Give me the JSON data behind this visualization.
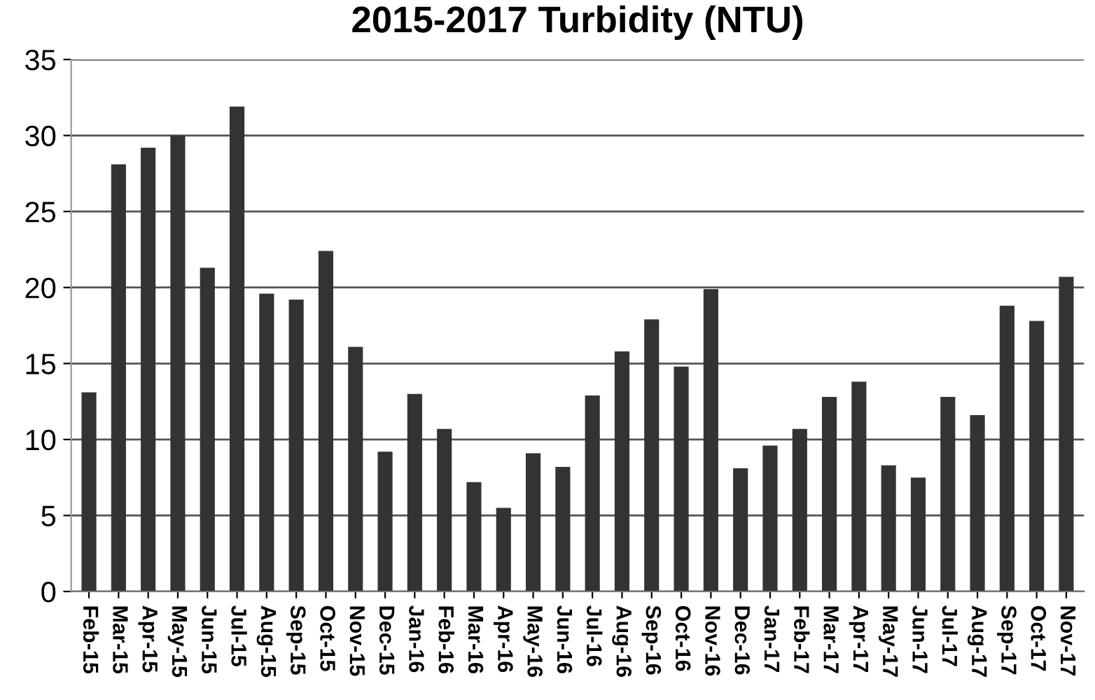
{
  "chart_data": {
    "type": "bar",
    "title": "2015-2017 Turbidity (NTU)",
    "categories": [
      "Feb-15",
      "Mar-15",
      "Apr-15",
      "May-15",
      "Jun-15",
      "Jul-15",
      "Aug-15",
      "Sep-15",
      "Oct-15",
      "Nov-15",
      "Dec-15",
      "Jan-16",
      "Feb-16",
      "Mar-16",
      "Apr-16",
      "May-16",
      "Jun-16",
      "Jul-16",
      "Aug-16",
      "Sep-16",
      "Oct-16",
      "Nov-16",
      "Dec-16",
      "Jan-17",
      "Feb-17",
      "Mar-17",
      "Apr-17",
      "May-17",
      "Jun-17",
      "Jul-17",
      "Aug-17",
      "Sep-17",
      "Oct-17",
      "Nov-17"
    ],
    "values": [
      13.1,
      28.1,
      29.2,
      30.0,
      21.3,
      31.9,
      19.6,
      19.2,
      22.4,
      16.1,
      9.2,
      13.0,
      10.7,
      7.2,
      5.5,
      9.1,
      8.2,
      12.9,
      15.8,
      17.9,
      14.8,
      19.9,
      8.1,
      9.6,
      10.7,
      12.8,
      13.8,
      8.3,
      7.5,
      12.8,
      11.6,
      18.8,
      17.8,
      20.7
    ],
    "color": "#333333",
    "ylim": [
      0,
      35
    ],
    "yticks": [
      0,
      5,
      10,
      15,
      20,
      25,
      30,
      35
    ],
    "grid": "y"
  }
}
